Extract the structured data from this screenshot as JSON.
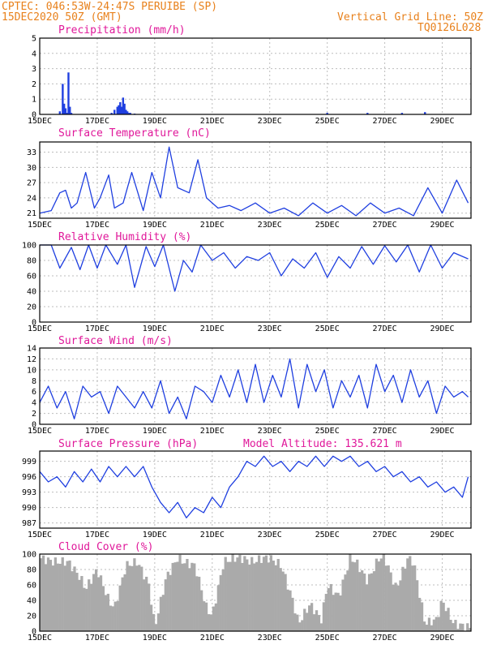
{
  "header": {
    "line1": "CPTEC:   046:53W-24:47S  PERUIBE (SP)",
    "line2": "15DEC2020 50Z (GMT)",
    "grid_note": "Vertical Grid Line: 50Z",
    "code": "TQ0126L028"
  },
  "colors": {
    "header": "#e8811c",
    "titles": "#e0189a",
    "line": "#1f3fe0",
    "cloud": "#aaaaaa"
  },
  "x_tick_labels": [
    "15DEC",
    "17DEC",
    "19DEC",
    "21DEC",
    "23DEC",
    "25DEC",
    "27DEC",
    "29DEC"
  ],
  "chart_data": [
    {
      "type": "bar",
      "title": "Precipitation (mm/h)",
      "ylim": [
        0,
        5
      ],
      "yticks": [
        "0",
        "1",
        "2",
        "3",
        "4",
        "5"
      ],
      "x_units": "days since 15DEC",
      "x": [
        0.7,
        0.8,
        0.85,
        0.9,
        0.95,
        1.0,
        1.05,
        1.1,
        2.5,
        2.6,
        2.7,
        2.75,
        2.8,
        2.85,
        2.9,
        2.95,
        3.0,
        3.05,
        3.1,
        3.15,
        3.3,
        10.0,
        11.4,
        12.6,
        13.4
      ],
      "values": [
        0.2,
        2.0,
        0.7,
        0.4,
        0.1,
        2.75,
        0.5,
        0.1,
        0.1,
        0.3,
        0.5,
        0.6,
        0.8,
        0.5,
        1.1,
        0.7,
        0.3,
        0.2,
        0.1,
        0.1,
        0.05,
        0.1,
        0.1,
        0.1,
        0.15
      ]
    },
    {
      "type": "line",
      "title": "Surface Temperature (nC)",
      "ylim": [
        20,
        35
      ],
      "yticks": [
        "21",
        "24",
        "27",
        "30",
        "33"
      ],
      "x_units": "days since 15DEC",
      "x": [
        0,
        0.4,
        0.7,
        0.9,
        1.1,
        1.3,
        1.6,
        1.9,
        2.1,
        2.4,
        2.6,
        2.9,
        3.2,
        3.6,
        3.9,
        4.2,
        4.5,
        4.8,
        5.2,
        5.5,
        5.8,
        6.2,
        6.6,
        7.0,
        7.5,
        8.0,
        8.5,
        9.0,
        9.5,
        10.0,
        10.5,
        11.0,
        11.5,
        12.0,
        12.5,
        13.0,
        13.5,
        14.0,
        14.5,
        14.9
      ],
      "values": [
        21,
        21.5,
        25,
        25.5,
        22,
        23,
        29,
        22,
        24,
        28.5,
        22,
        23,
        29,
        21.5,
        29,
        24,
        34,
        26,
        25,
        31.5,
        24,
        22,
        22.5,
        21.5,
        23,
        21,
        22,
        20.5,
        23,
        21,
        22.5,
        20.5,
        23,
        21,
        22,
        20.5,
        26,
        21,
        27.5,
        23
      ]
    },
    {
      "type": "line",
      "title": "Relative Humidity (%)",
      "ylim": [
        0,
        100
      ],
      "yticks": [
        "0",
        "20",
        "40",
        "60",
        "80",
        "100"
      ],
      "x_units": "days since 15DEC",
      "x": [
        0,
        0.4,
        0.7,
        1.1,
        1.4,
        1.7,
        2.0,
        2.3,
        2.7,
        3.0,
        3.3,
        3.7,
        4.0,
        4.3,
        4.7,
        5.0,
        5.3,
        5.6,
        6.0,
        6.4,
        6.8,
        7.2,
        7.6,
        8.0,
        8.4,
        8.8,
        9.2,
        9.6,
        10.0,
        10.4,
        10.8,
        11.2,
        11.6,
        12.0,
        12.4,
        12.8,
        13.2,
        13.6,
        14.0,
        14.4,
        14.9
      ],
      "values": [
        100,
        100,
        70,
        97,
        68,
        100,
        70,
        100,
        75,
        100,
        45,
        98,
        72,
        100,
        40,
        80,
        65,
        100,
        80,
        90,
        70,
        85,
        80,
        90,
        60,
        82,
        70,
        90,
        58,
        85,
        70,
        98,
        75,
        99,
        78,
        100,
        65,
        100,
        70,
        90,
        82
      ]
    },
    {
      "type": "line",
      "title": "Surface Wind (m/s)",
      "ylim": [
        0,
        14
      ],
      "yticks": [
        "0",
        "2",
        "4",
        "6",
        "8",
        "10",
        "12",
        "14"
      ],
      "x_units": "days since 15DEC",
      "x": [
        0,
        0.3,
        0.6,
        0.9,
        1.2,
        1.5,
        1.8,
        2.1,
        2.4,
        2.7,
        3.0,
        3.3,
        3.6,
        3.9,
        4.2,
        4.5,
        4.8,
        5.1,
        5.4,
        5.7,
        6.0,
        6.3,
        6.6,
        6.9,
        7.2,
        7.5,
        7.8,
        8.1,
        8.4,
        8.7,
        9.0,
        9.3,
        9.6,
        9.9,
        10.2,
        10.5,
        10.8,
        11.1,
        11.4,
        11.7,
        12.0,
        12.3,
        12.6,
        12.9,
        13.2,
        13.5,
        13.8,
        14.1,
        14.4,
        14.7,
        14.9
      ],
      "values": [
        4,
        7,
        3,
        6,
        1,
        7,
        5,
        6,
        2,
        7,
        5,
        3,
        6,
        3,
        8,
        2,
        5,
        1,
        7,
        6,
        4,
        9,
        5,
        10,
        4,
        11,
        4,
        9,
        5,
        12,
        3,
        11,
        6,
        10,
        3,
        8,
        5,
        9,
        3,
        11,
        6,
        9,
        4,
        10,
        5,
        8,
        2,
        7,
        5,
        6,
        5
      ]
    },
    {
      "type": "line",
      "title": "Surface Pressure (hPa)",
      "annotation": "Model Altitude: 135.621  m",
      "ylim": [
        986,
        1001
      ],
      "yticks": [
        "987",
        "990",
        "993",
        "996",
        "999"
      ],
      "x_units": "days since 15DEC",
      "x": [
        0,
        0.3,
        0.6,
        0.9,
        1.2,
        1.5,
        1.8,
        2.1,
        2.4,
        2.7,
        3.0,
        3.3,
        3.6,
        3.9,
        4.2,
        4.5,
        4.8,
        5.1,
        5.4,
        5.7,
        6.0,
        6.3,
        6.6,
        6.9,
        7.2,
        7.5,
        7.8,
        8.1,
        8.4,
        8.7,
        9.0,
        9.3,
        9.6,
        9.9,
        10.2,
        10.5,
        10.8,
        11.1,
        11.4,
        11.7,
        12.0,
        12.3,
        12.6,
        12.9,
        13.2,
        13.5,
        13.8,
        14.1,
        14.4,
        14.7,
        14.9
      ],
      "values": [
        997,
        995,
        996,
        994,
        997,
        995,
        997.5,
        995,
        998,
        996,
        998,
        996,
        998,
        994,
        991,
        989,
        991,
        988,
        990,
        989,
        992,
        990,
        994,
        996,
        999,
        998,
        1000,
        998,
        999,
        997,
        999,
        998,
        1000,
        998,
        1000,
        999,
        1000,
        998,
        999,
        997,
        998,
        996,
        997,
        995,
        996,
        994,
        995,
        993,
        994,
        992,
        996
      ]
    },
    {
      "type": "area",
      "title": "Cloud Cover (%)",
      "ylim": [
        0,
        100
      ],
      "yticks": [
        "0",
        "20",
        "40",
        "60",
        "80",
        "100"
      ],
      "x_units": "days since 15DEC",
      "x": [
        0,
        0.5,
        1.0,
        1.4,
        1.6,
        2.0,
        2.4,
        2.6,
        3.0,
        3.4,
        3.8,
        4.0,
        4.4,
        4.8,
        5.0,
        5.4,
        5.8,
        6.0,
        6.4,
        6.8,
        7.0,
        7.4,
        7.8,
        8.0,
        8.4,
        8.8,
        9.0,
        9.4,
        9.8,
        10.0,
        10.4,
        10.8,
        11.0,
        11.4,
        11.8,
        12.0,
        12.4,
        12.8,
        13.0,
        13.4,
        13.8,
        14.0,
        14.4,
        14.9
      ],
      "values": [
        95,
        90,
        90,
        70,
        55,
        80,
        40,
        30,
        85,
        90,
        60,
        5,
        70,
        95,
        90,
        85,
        30,
        20,
        90,
        95,
        95,
        90,
        95,
        95,
        85,
        40,
        10,
        35,
        15,
        60,
        45,
        95,
        90,
        65,
        95,
        95,
        55,
        95,
        90,
        10,
        15,
        40,
        10,
        5
      ]
    }
  ]
}
